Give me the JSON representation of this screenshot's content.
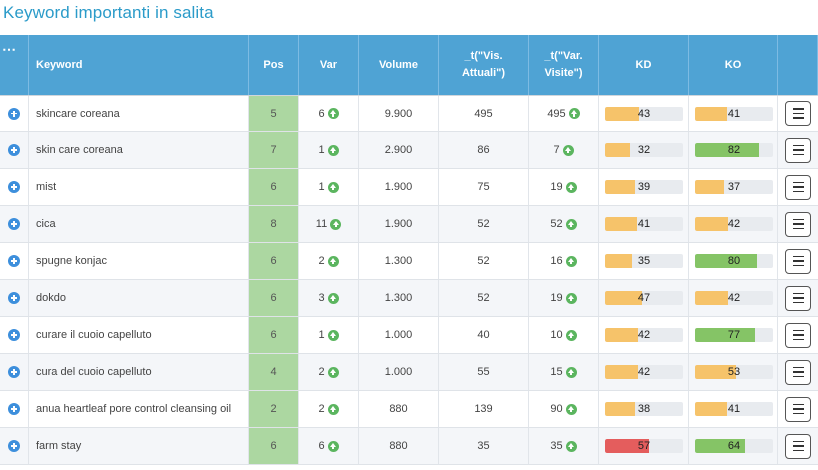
{
  "title": "Keyword importanti in salita",
  "colors": {
    "fill_yellow": "#f6c36a",
    "fill_green": "#85c466",
    "fill_red": "#e45d5d",
    "pos_bg": "#acd7a1",
    "header_bg": "#4fa3d4",
    "title": "#2b9bc9"
  },
  "icons": {
    "row_toggle": "plus-circle-icon",
    "trend": "arrow-up-circle-icon",
    "actions": "hamburger-menu-icon",
    "columns": "more-dots-icon"
  },
  "header": {
    "dots": "⋯",
    "keyword": "Keyword",
    "pos": "Pos",
    "var": "Var",
    "volume": "Volume",
    "vis_line1": "_t(\"Vis.",
    "vis_line2": "Attuali\")",
    "varv_line1": "_t(\"Var.",
    "varv_line2": "Visite\")",
    "kd": "KD",
    "ko": "KO"
  },
  "rows": [
    {
      "keyword": "skincare coreana",
      "pos": "5",
      "var": "6",
      "volume": "9.900",
      "vis": "495",
      "varv": "495",
      "kd": 43,
      "kd_color": "yellow",
      "ko": 41,
      "ko_color": "yellow"
    },
    {
      "keyword": "skin care coreana",
      "pos": "7",
      "var": "1",
      "volume": "2.900",
      "vis": "86",
      "varv": "7",
      "kd": 32,
      "kd_color": "yellow",
      "ko": 82,
      "ko_color": "green"
    },
    {
      "keyword": "mist",
      "pos": "6",
      "var": "1",
      "volume": "1.900",
      "vis": "75",
      "varv": "19",
      "kd": 39,
      "kd_color": "yellow",
      "ko": 37,
      "ko_color": "yellow"
    },
    {
      "keyword": "cica",
      "pos": "8",
      "var": "11",
      "volume": "1.900",
      "vis": "52",
      "varv": "52",
      "kd": 41,
      "kd_color": "yellow",
      "ko": 42,
      "ko_color": "yellow"
    },
    {
      "keyword": "spugne konjac",
      "pos": "6",
      "var": "2",
      "volume": "1.300",
      "vis": "52",
      "varv": "16",
      "kd": 35,
      "kd_color": "yellow",
      "ko": 80,
      "ko_color": "green"
    },
    {
      "keyword": "dokdo",
      "pos": "6",
      "var": "3",
      "volume": "1.300",
      "vis": "52",
      "varv": "19",
      "kd": 47,
      "kd_color": "yellow",
      "ko": 42,
      "ko_color": "yellow"
    },
    {
      "keyword": "curare il cuoio capelluto",
      "pos": "6",
      "var": "1",
      "volume": "1.000",
      "vis": "40",
      "varv": "10",
      "kd": 42,
      "kd_color": "yellow",
      "ko": 77,
      "ko_color": "green"
    },
    {
      "keyword": "cura del cuoio capelluto",
      "pos": "4",
      "var": "2",
      "volume": "1.000",
      "vis": "55",
      "varv": "15",
      "kd": 42,
      "kd_color": "yellow",
      "ko": 53,
      "ko_color": "yellow"
    },
    {
      "keyword": "anua heartleaf pore control cleansing oil",
      "pos": "2",
      "var": "2",
      "volume": "880",
      "vis": "139",
      "varv": "90",
      "kd": 38,
      "kd_color": "yellow",
      "ko": 41,
      "ko_color": "yellow"
    },
    {
      "keyword": "farm stay",
      "pos": "6",
      "var": "6",
      "volume": "880",
      "vis": "35",
      "varv": "35",
      "kd": 57,
      "kd_color": "red",
      "ko": 64,
      "ko_color": "green"
    }
  ]
}
